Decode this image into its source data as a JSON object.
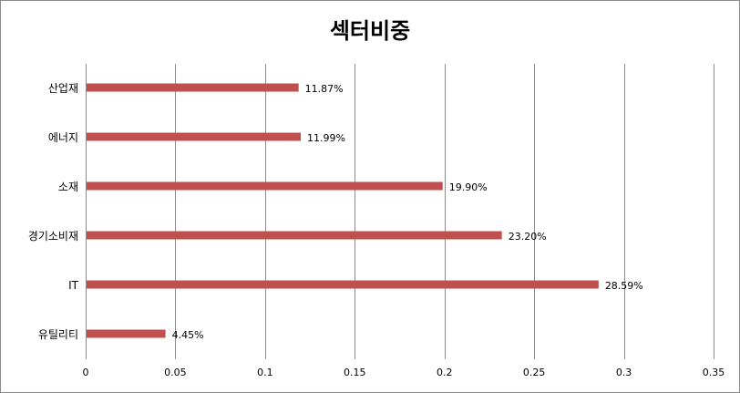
{
  "chart_data": {
    "type": "bar",
    "orientation": "horizontal",
    "title": "섹터비중",
    "xlabel": "",
    "ylabel": "",
    "categories": [
      "산업재",
      "에너지",
      "소재",
      "경기소비재",
      "IT",
      "유틸리티"
    ],
    "values": [
      0.1187,
      0.1199,
      0.199,
      0.232,
      0.2859,
      0.0445
    ],
    "data_labels": [
      "11.87%",
      "11.99%",
      "19.90%",
      "23.20%",
      "28.59%",
      "4.45%"
    ],
    "xlim": [
      0,
      0.35
    ],
    "x_ticks": [
      0,
      0.05,
      0.1,
      0.15,
      0.2,
      0.25,
      0.3,
      0.35
    ],
    "x_tick_labels": [
      "0",
      "0.05",
      "0.1",
      "0.15",
      "0.2",
      "0.25",
      "0.3",
      "0.35"
    ],
    "grid": "vertical",
    "legend": "none",
    "bar_color": "#c0504d",
    "grid_color": "#8c8c8c"
  }
}
